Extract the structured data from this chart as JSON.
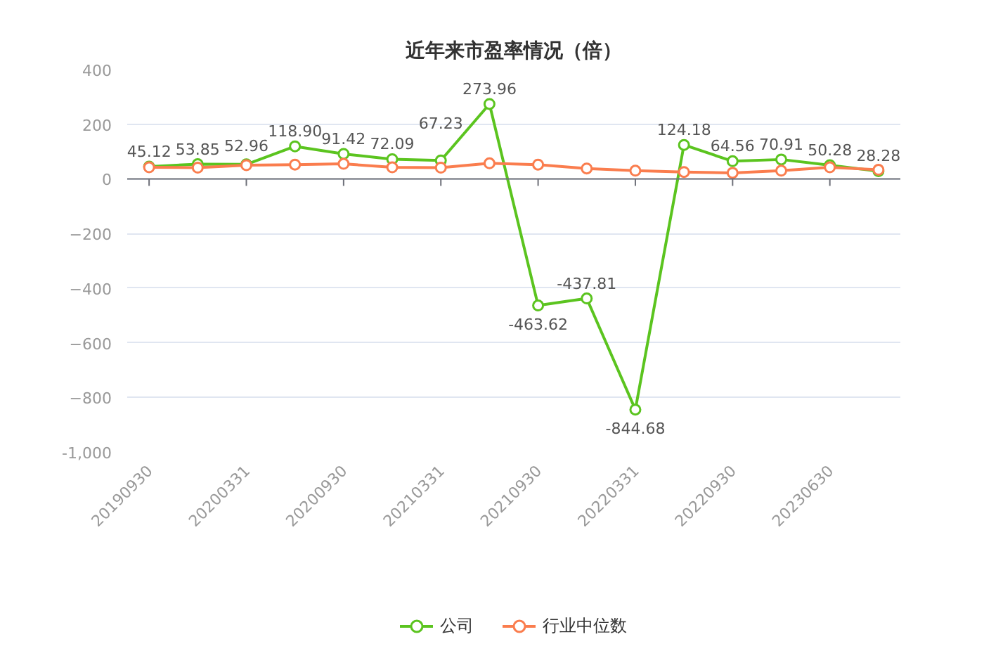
{
  "chart_data": {
    "type": "line",
    "title": "近年来市盈率情况（倍）",
    "categories": [
      "20190930",
      null,
      "20200331",
      null,
      "20200930",
      null,
      "20210331",
      null,
      "20210930",
      null,
      "20220331",
      null,
      "20220930",
      null,
      "20230630",
      null
    ],
    "series": [
      {
        "name": "公司",
        "color": "#5bc41f",
        "values": [
          45.12,
          53.85,
          52.96,
          118.9,
          91.42,
          72.09,
          67.23,
          273.96,
          -463.62,
          -437.81,
          -844.68,
          124.18,
          64.56,
          70.91,
          50.28,
          28.28
        ],
        "value_labels": [
          "45.12",
          "53.85",
          "52.96",
          "118.90",
          "91.42",
          "72.09",
          "67.23",
          "273.96",
          "-463.62",
          "-437.81",
          "-844.68",
          "124.18",
          "64.56",
          "70.91",
          "50.28",
          "28.28"
        ]
      },
      {
        "name": "行业中位数",
        "color": "#fa7d4e",
        "values": [
          42,
          41,
          50,
          52,
          55,
          42,
          41,
          57,
          52,
          38,
          30,
          25,
          22,
          30,
          42,
          33
        ]
      }
    ],
    "ylim": [
      -1000,
      400
    ],
    "yticks": [
      {
        "value": -1000,
        "label": "-1,000"
      },
      -800,
      -600,
      -400,
      -200,
      0,
      200,
      400
    ],
    "grid": "y",
    "legend": "bottom",
    "marker": "circle",
    "line_style": "solid"
  }
}
